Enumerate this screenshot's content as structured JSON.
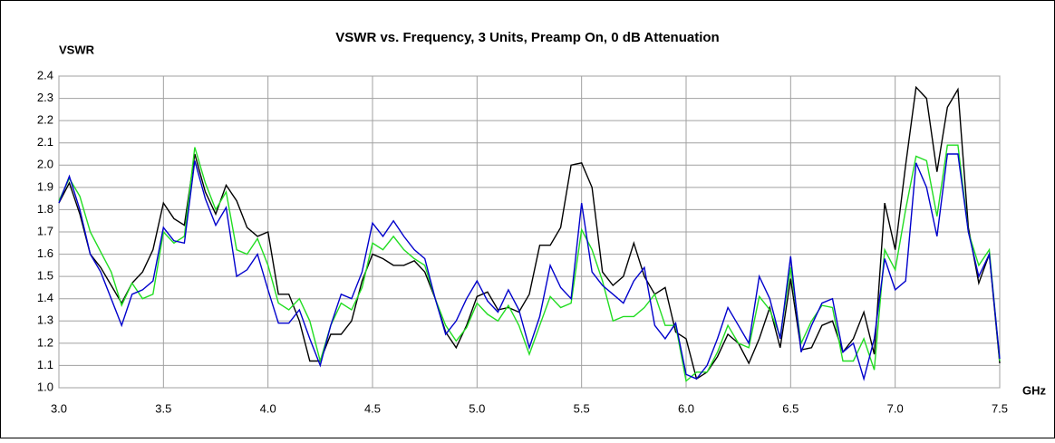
{
  "chart_data": {
    "type": "line",
    "title": "VSWR vs. Frequency, 3 Units, Preamp On, 0 dB Attenuation",
    "y_label": "VSWR",
    "x_label": "GHz",
    "x": [
      3.0,
      3.05,
      3.1,
      3.15,
      3.2,
      3.25,
      3.3,
      3.35,
      3.4,
      3.45,
      3.5,
      3.55,
      3.6,
      3.65,
      3.7,
      3.75,
      3.8,
      3.85,
      3.9,
      3.95,
      4.0,
      4.05,
      4.1,
      4.15,
      4.2,
      4.25,
      4.3,
      4.35,
      4.4,
      4.45,
      4.5,
      4.55,
      4.6,
      4.65,
      4.7,
      4.75,
      4.8,
      4.85,
      4.9,
      4.95,
      5.0,
      5.05,
      5.1,
      5.15,
      5.2,
      5.25,
      5.3,
      5.35,
      5.4,
      5.45,
      5.5,
      5.55,
      5.6,
      5.65,
      5.7,
      5.75,
      5.8,
      5.85,
      5.9,
      5.95,
      6.0,
      6.05,
      6.1,
      6.15,
      6.2,
      6.25,
      6.3,
      6.35,
      6.4,
      6.45,
      6.5,
      6.55,
      6.6,
      6.65,
      6.7,
      6.75,
      6.8,
      6.85,
      6.9,
      6.95,
      7.0,
      7.05,
      7.1,
      7.15,
      7.2,
      7.25,
      7.3,
      7.35,
      7.4,
      7.45,
      7.5
    ],
    "series": [
      {
        "color": "#000000",
        "values": [
          1.83,
          1.92,
          1.78,
          1.6,
          1.54,
          1.46,
          1.38,
          1.47,
          1.52,
          1.62,
          1.83,
          1.76,
          1.73,
          2.05,
          1.88,
          1.78,
          1.91,
          1.84,
          1.72,
          1.68,
          1.7,
          1.42,
          1.42,
          1.3,
          1.12,
          1.12,
          1.24,
          1.24,
          1.3,
          1.48,
          1.6,
          1.58,
          1.55,
          1.55,
          1.57,
          1.52,
          1.4,
          1.25,
          1.18,
          1.28,
          1.41,
          1.43,
          1.35,
          1.36,
          1.34,
          1.42,
          1.64,
          1.64,
          1.72,
          2.0,
          2.01,
          1.9,
          1.52,
          1.46,
          1.5,
          1.65,
          1.5,
          1.42,
          1.45,
          1.25,
          1.22,
          1.04,
          1.07,
          1.14,
          1.24,
          1.2,
          1.11,
          1.22,
          1.36,
          1.18,
          1.49,
          1.17,
          1.18,
          1.28,
          1.3,
          1.16,
          1.22,
          1.34,
          1.15,
          1.83,
          1.62,
          2.0,
          2.35,
          2.3,
          1.97,
          2.26,
          2.34,
          1.72,
          1.47,
          1.6,
          1.11
        ]
      },
      {
        "color": "#22dd22",
        "values": [
          1.84,
          1.94,
          1.86,
          1.7,
          1.61,
          1.52,
          1.37,
          1.47,
          1.4,
          1.42,
          1.7,
          1.65,
          1.68,
          2.08,
          1.92,
          1.8,
          1.88,
          1.62,
          1.6,
          1.67,
          1.55,
          1.38,
          1.35,
          1.4,
          1.3,
          1.12,
          1.28,
          1.38,
          1.35,
          1.45,
          1.65,
          1.62,
          1.68,
          1.62,
          1.58,
          1.55,
          1.4,
          1.28,
          1.21,
          1.27,
          1.38,
          1.33,
          1.3,
          1.37,
          1.28,
          1.15,
          1.28,
          1.41,
          1.36,
          1.38,
          1.71,
          1.62,
          1.48,
          1.3,
          1.32,
          1.32,
          1.36,
          1.42,
          1.28,
          1.28,
          1.03,
          1.07,
          1.07,
          1.16,
          1.28,
          1.2,
          1.18,
          1.41,
          1.35,
          1.23,
          1.54,
          1.2,
          1.3,
          1.37,
          1.36,
          1.12,
          1.12,
          1.22,
          1.08,
          1.62,
          1.53,
          1.8,
          2.04,
          2.02,
          1.77,
          2.09,
          2.09,
          1.7,
          1.55,
          1.62,
          1.12
        ]
      },
      {
        "color": "#0000cc",
        "values": [
          1.83,
          1.95,
          1.8,
          1.6,
          1.52,
          1.4,
          1.28,
          1.42,
          1.44,
          1.48,
          1.72,
          1.66,
          1.65,
          2.02,
          1.85,
          1.73,
          1.81,
          1.5,
          1.53,
          1.6,
          1.44,
          1.29,
          1.29,
          1.35,
          1.22,
          1.1,
          1.28,
          1.42,
          1.4,
          1.52,
          1.74,
          1.68,
          1.75,
          1.68,
          1.62,
          1.58,
          1.4,
          1.24,
          1.3,
          1.4,
          1.48,
          1.39,
          1.34,
          1.44,
          1.35,
          1.18,
          1.32,
          1.55,
          1.45,
          1.4,
          1.83,
          1.52,
          1.46,
          1.42,
          1.38,
          1.48,
          1.54,
          1.28,
          1.22,
          1.29,
          1.06,
          1.04,
          1.1,
          1.22,
          1.36,
          1.28,
          1.2,
          1.5,
          1.4,
          1.22,
          1.59,
          1.16,
          1.28,
          1.38,
          1.4,
          1.16,
          1.2,
          1.04,
          1.22,
          1.58,
          1.44,
          1.48,
          2.01,
          1.9,
          1.68,
          2.05,
          2.05,
          1.7,
          1.5,
          1.6,
          1.13
        ]
      }
    ],
    "xlim": [
      3.0,
      7.5
    ],
    "xticks": [
      {
        "value": 3,
        "label": "3.0"
      },
      3.5,
      {
        "value": 4,
        "label": "4.0"
      },
      4.5,
      {
        "value": 5,
        "label": "5.0"
      },
      5.5,
      {
        "value": 6,
        "label": "6.0"
      },
      6.5,
      {
        "value": 7,
        "label": "7.0"
      },
      7.5
    ],
    "ylim": [
      1.0,
      2.4
    ],
    "yticks": [
      {
        "value": 1,
        "label": "1.0"
      },
      1.1,
      1.2,
      1.3,
      1.4,
      1.5,
      1.6,
      1.7,
      1.8,
      1.9,
      {
        "value": 2,
        "label": "2.0"
      },
      2.1,
      2.2,
      2.3,
      2.4
    ],
    "grid": true
  }
}
